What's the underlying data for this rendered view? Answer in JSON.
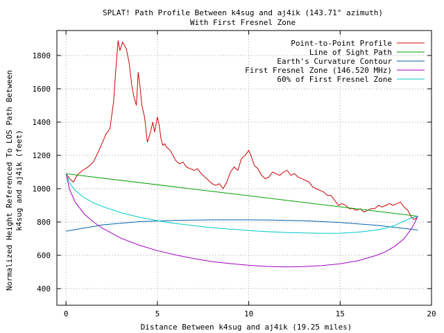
{
  "chart_data": {
    "type": "line",
    "title": "SPLAT! Path Profile Between k4sug and aj4ik (143.71° azimuth)",
    "subtitle": "With First Fresnel Zone",
    "xlabel": "Distance Between k4sug and aj4ik (19.25 miles)",
    "ylabel": "Normalized Height Referenced To LOS Path Between",
    "ylabel2": "k4sug and aj4ik (feet)",
    "xlim": [
      -0.5,
      20
    ],
    "ylim": [
      300,
      1950
    ],
    "xticks": [
      0,
      5,
      10,
      15,
      20
    ],
    "yticks": [
      400,
      600,
      800,
      1000,
      1200,
      1400,
      1600,
      1800
    ],
    "grid": true,
    "legend_position": "top-right",
    "series": [
      {
        "name": "Point-to-Point Profile",
        "color": "#cc0000",
        "x": [
          0,
          0.2,
          0.4,
          0.6,
          0.9,
          1.2,
          1.5,
          1.8,
          2.0,
          2.2,
          2.4,
          2.6,
          2.7,
          2.85,
          2.95,
          3.1,
          3.3,
          3.45,
          3.6,
          3.7,
          3.85,
          3.95,
          4.05,
          4.15,
          4.3,
          4.45,
          4.6,
          4.75,
          4.85,
          5.0,
          5.1,
          5.2,
          5.3,
          5.4,
          5.5,
          5.6,
          5.7,
          5.8,
          5.9,
          6.0,
          6.2,
          6.4,
          6.6,
          6.8,
          7.0,
          7.2,
          7.4,
          7.6,
          7.8,
          8.0,
          8.2,
          8.4,
          8.6,
          8.8,
          9.0,
          9.2,
          9.4,
          9.6,
          9.8,
          10.0,
          10.15,
          10.3,
          10.5,
          10.7,
          10.9,
          11.1,
          11.3,
          11.5,
          11.7,
          11.9,
          12.1,
          12.3,
          12.5,
          12.7,
          12.9,
          13.1,
          13.3,
          13.5,
          13.7,
          13.9,
          14.1,
          14.3,
          14.5,
          14.7,
          14.9,
          15.1,
          15.3,
          15.5,
          15.7,
          15.9,
          16.1,
          16.3,
          16.5,
          16.7,
          16.9,
          17.1,
          17.3,
          17.5,
          17.7,
          17.9,
          18.1,
          18.3,
          18.5,
          18.7,
          18.9,
          19.05,
          19.25
        ],
        "y": [
          1090,
          1060,
          1040,
          1080,
          1110,
          1130,
          1160,
          1230,
          1280,
          1330,
          1360,
          1520,
          1680,
          1890,
          1830,
          1880,
          1840,
          1760,
          1620,
          1560,
          1500,
          1700,
          1610,
          1500,
          1430,
          1280,
          1330,
          1400,
          1340,
          1430,
          1380,
          1300,
          1260,
          1270,
          1250,
          1240,
          1230,
          1210,
          1190,
          1170,
          1150,
          1160,
          1130,
          1120,
          1110,
          1120,
          1090,
          1070,
          1050,
          1030,
          1020,
          1030,
          1000,
          1040,
          1100,
          1130,
          1110,
          1180,
          1200,
          1230,
          1190,
          1140,
          1120,
          1080,
          1060,
          1070,
          1100,
          1090,
          1080,
          1100,
          1110,
          1080,
          1090,
          1070,
          1060,
          1050,
          1040,
          1010,
          1000,
          990,
          980,
          960,
          960,
          930,
          900,
          910,
          900,
          880,
          880,
          870,
          880,
          860,
          870,
          880,
          880,
          900,
          890,
          900,
          910,
          900,
          910,
          920,
          890,
          870,
          830,
          815,
          830
        ]
      },
      {
        "name": "Line of Sight Path",
        "color": "#00a000",
        "x": [
          0,
          19.25
        ],
        "y": [
          1090,
          835
        ]
      },
      {
        "name": "Earth's Curvature Contour",
        "color": "#0060b0",
        "x": [
          0,
          2,
          4,
          6,
          8,
          9.6,
          11,
          13,
          15,
          17,
          19.25
        ],
        "y": [
          745,
          783,
          802,
          810,
          813,
          813,
          812,
          808,
          797,
          780,
          752
        ]
      },
      {
        "name": "First Fresnel Zone (146.520 MHz)",
        "color": "#a000c0",
        "x": [
          0,
          0.2,
          0.5,
          1,
          1.5,
          2,
          3,
          4,
          5,
          6,
          7,
          8,
          9,
          10,
          11,
          12,
          13,
          14,
          15,
          16,
          17,
          17.5,
          18,
          18.5,
          18.9,
          19.1,
          19.25
        ],
        "y": [
          1090,
          995,
          920,
          848,
          800,
          762,
          703,
          661,
          628,
          602,
          580,
          562,
          550,
          540,
          533,
          530,
          532,
          538,
          549,
          568,
          600,
          622,
          655,
          700,
          760,
          800,
          835
        ]
      },
      {
        "name": "60% of First Fresnel Zone",
        "color": "#00c8c8",
        "x": [
          0,
          0.2,
          0.5,
          1,
          1.5,
          2,
          3,
          4,
          5,
          6,
          7,
          8,
          9,
          10,
          11,
          12,
          13,
          14,
          15,
          16,
          17,
          17.5,
          18,
          18.5,
          18.9,
          19.1,
          19.25
        ],
        "y": [
          1090,
          1033,
          990,
          946,
          915,
          893,
          856,
          829,
          808,
          791,
          778,
          766,
          757,
          749,
          742,
          737,
          734,
          732,
          733,
          739,
          752,
          763,
          780,
          805,
          825,
          830,
          835
        ]
      }
    ]
  }
}
